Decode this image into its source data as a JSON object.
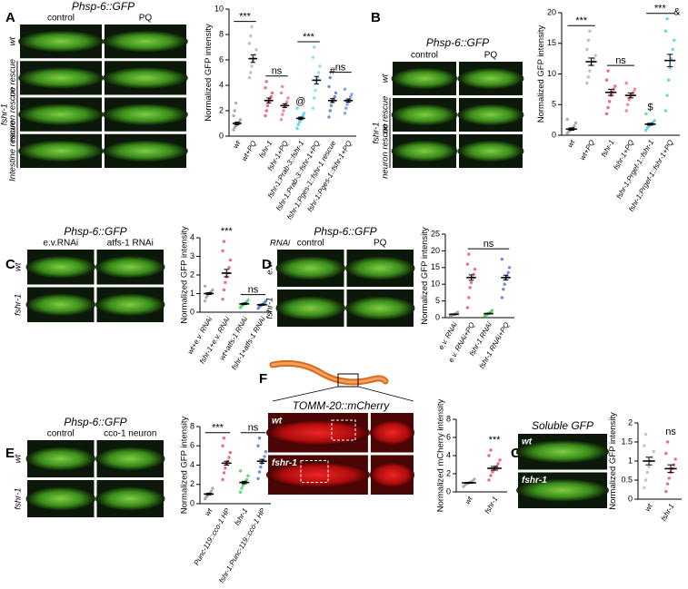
{
  "panels": [
    {
      "letter": "A",
      "title": "Phsp-6::GFP",
      "columns": [
        "control",
        "PQ"
      ],
      "rows": [
        "wt",
        "no rescue",
        "neuron rescue",
        "Intestine rescue"
      ],
      "group": "fshr-1"
    },
    {
      "letter": "B",
      "title": "Phsp-6::GFP",
      "columns": [
        "control",
        "PQ"
      ],
      "rows": [
        "wt",
        "no rescue",
        "neuron rescue"
      ],
      "group": "fshr-1"
    },
    {
      "letter": "C",
      "title": "Phsp-6::GFP",
      "columns": [
        "e.v.RNAi",
        "atfs-1 RNAi"
      ],
      "rows": [
        "wt",
        "fshr-1"
      ]
    },
    {
      "letter": "D",
      "title": "Phsp-6::GFP",
      "corner": "RNAi",
      "columns": [
        "control",
        "PQ"
      ],
      "rows": [
        "e.v.",
        "fshr-1"
      ]
    },
    {
      "letter": "E",
      "title": "Phsp-6::GFP",
      "columns": [
        "control",
        "cco-1 neuron"
      ],
      "rows": [
        "wt",
        "fshr-1"
      ]
    },
    {
      "letter": "F",
      "title": "TOMM-20::mCherry",
      "rows": [
        "wt",
        "fshr-1"
      ]
    },
    {
      "letter": "G",
      "title": "Soluble GFP",
      "rows": [
        "wt",
        "fshr-1"
      ]
    }
  ],
  "chart_data": [
    {
      "type": "dot",
      "ylabel": "Normalized GFP intensity",
      "categories": [
        "wt",
        "wt+PQ",
        "fshr-1",
        "fshr-1+PQ",
        "fshr-1;Prab-3::fshr-1",
        "fshr-1;Prab-3::fshr-1+PQ",
        "fshr-1;Pges-1::fshr-1 rescue",
        "fshr-1;Pges-1::fshr-1+PQ"
      ],
      "colors": [
        "#9a9a9a",
        "#b0b0b0",
        "#e8485a",
        "#ee6a78",
        "#3fd0ee",
        "#6adcf2",
        "#4f6fd0",
        "#6f88dc"
      ],
      "means": [
        1.0,
        6.1,
        2.8,
        2.4,
        1.4,
        4.4,
        2.8,
        2.8
      ],
      "errors": [
        0.1,
        0.3,
        0.2,
        0.15,
        0.1,
        0.3,
        0.15,
        0.12
      ],
      "points": [
        [
          0.5,
          0.7,
          0.8,
          0.9,
          1.0,
          1.1,
          1.3,
          1.6,
          2.0,
          2.6
        ],
        [
          4.6,
          5.0,
          5.5,
          5.9,
          6.1,
          6.4,
          6.8,
          7.3,
          7.9,
          8.6
        ],
        [
          1.6,
          2.0,
          2.4,
          2.7,
          2.9,
          3.1,
          3.4,
          3.8,
          4.3
        ],
        [
          1.3,
          1.7,
          2.0,
          2.3,
          2.5,
          2.7,
          3.0,
          3.4,
          3.9
        ],
        [
          0.6,
          0.9,
          1.1,
          1.3,
          1.4,
          1.6,
          1.8,
          2.2
        ],
        [
          2.2,
          3.0,
          3.6,
          4.2,
          4.6,
          5.0,
          5.5,
          6.2,
          7.0
        ],
        [
          1.5,
          2.0,
          2.4,
          2.7,
          2.9,
          3.1,
          3.4,
          3.9,
          4.6
        ],
        [
          1.8,
          2.2,
          2.5,
          2.7,
          2.9,
          3.1,
          3.3,
          3.7
        ]
      ],
      "ylim": [
        0,
        10
      ],
      "yticks": [
        0,
        2,
        4,
        6,
        8,
        10
      ],
      "brackets": [
        {
          "label": "***",
          "from": 0,
          "to": 1
        },
        {
          "label": "ns",
          "from": 2,
          "to": 3
        },
        {
          "label": "***",
          "from": 4,
          "to": 5
        },
        {
          "label": "ns",
          "from": 6,
          "to": 7
        }
      ],
      "marks": [
        {
          "label": "@",
          "category": 4
        },
        {
          "label": "#",
          "category": 6
        }
      ]
    },
    {
      "type": "dot",
      "ylabel": "Normalized GFP intensity",
      "categories": [
        "wt",
        "wt+PQ",
        "fshr-1",
        "fshr-1+PQ",
        "fshr-1;Prgef-1::fshr-1",
        "fshr-1;Prgef-1::fshr-1+PQ"
      ],
      "colors": [
        "#9a9a9a",
        "#b0b0b0",
        "#e8485a",
        "#ee6a78",
        "#3fd0ee",
        "#3fd0ee"
      ],
      "means": [
        1.0,
        12.0,
        7.0,
        6.5,
        1.8,
        12.2
      ],
      "errors": [
        0.2,
        0.6,
        0.5,
        0.4,
        0.15,
        1.0
      ],
      "points": [
        [
          0.3,
          0.6,
          0.8,
          1.0,
          1.2,
          1.5,
          2.0,
          2.6
        ],
        [
          8.5,
          9.5,
          10.5,
          11.5,
          12,
          12.5,
          13,
          14,
          15.5,
          17
        ],
        [
          3.5,
          4.5,
          5.5,
          6.5,
          7,
          7.5,
          8,
          9,
          10.5
        ],
        [
          4.0,
          5.0,
          5.8,
          6.3,
          6.6,
          7,
          7.5,
          8.5
        ],
        [
          0.8,
          1.2,
          1.5,
          1.7,
          1.9,
          2.1,
          2.4,
          3.5
        ],
        [
          4.0,
          6.5,
          9,
          11,
          12.5,
          14,
          15.5,
          17,
          19
        ]
      ],
      "ylim": [
        0,
        20
      ],
      "yticks": [
        0,
        5,
        10,
        15,
        20
      ],
      "brackets": [
        {
          "label": "***",
          "from": 0,
          "to": 1
        },
        {
          "label": "ns",
          "from": 2,
          "to": 3
        },
        {
          "label": "***",
          "from": 4,
          "to": 5
        }
      ],
      "marks": [
        {
          "label": "$",
          "category": 4
        },
        {
          "label": "&",
          "category": 5
        }
      ]
    },
    {
      "type": "dot",
      "ylabel": "Normalized GFP intensity",
      "categories": [
        "wt+e.v. RNAi",
        "fshr-1+e.v. RNAi",
        "wt+atfs-1 RNAi",
        "fshr-1+atfs-1 RNAi"
      ],
      "colors": [
        "#9a9a9a",
        "#e8485a",
        "#3ccf5a",
        "#4f6fd0"
      ],
      "means": [
        1.0,
        2.1,
        0.45,
        0.4
      ],
      "errors": [
        0.05,
        0.2,
        0.04,
        0.03
      ],
      "points": [
        [
          0.6,
          0.8,
          0.9,
          1.0,
          1.05,
          1.1,
          1.2,
          1.4
        ],
        [
          0.7,
          1.2,
          1.6,
          1.9,
          2.1,
          2.4,
          2.8,
          3.3,
          3.8
        ],
        [
          0.25,
          0.35,
          0.4,
          0.45,
          0.5,
          0.55,
          0.65
        ],
        [
          0.2,
          0.3,
          0.35,
          0.4,
          0.45,
          0.5,
          0.6
        ]
      ],
      "ylim": [
        0,
        4
      ],
      "yticks": [
        0,
        1,
        2,
        3,
        4
      ],
      "brackets": [
        {
          "label": "***",
          "from": 1,
          "to": 1
        },
        {
          "label": "ns",
          "from": 2,
          "to": 3
        }
      ],
      "marks": []
    },
    {
      "type": "dot",
      "ylabel": "Normalized GFP intensity",
      "categories": [
        "e.v. RNAi",
        "e.v. RNAi+PQ",
        "fshr-1 RNAi",
        "fshr-1 RNAi+PQ"
      ],
      "colors": [
        "#9a9a9a",
        "#e8485a",
        "#3ccf5a",
        "#4f6fd0"
      ],
      "means": [
        1.0,
        12.0,
        1.2,
        12.0
      ],
      "errors": [
        0.1,
        0.8,
        0.1,
        0.7
      ],
      "points": [
        [
          0.5,
          0.7,
          0.9,
          1.0,
          1.1,
          1.3,
          1.6
        ],
        [
          3,
          6,
          9,
          10.5,
          12,
          13,
          14.5,
          16,
          19
        ],
        [
          0.5,
          0.8,
          1.0,
          1.2,
          1.4,
          1.7,
          2.2
        ],
        [
          6,
          8.5,
          10,
          11.5,
          12.5,
          13.5,
          15,
          17.5
        ]
      ],
      "ylim": [
        0,
        25
      ],
      "yticks": [
        0,
        5,
        10,
        15,
        20,
        25
      ],
      "brackets": [
        {
          "label": "ns",
          "from": 1,
          "to": 3
        }
      ],
      "marks": []
    },
    {
      "type": "dot",
      "ylabel": "Normalized GFP intensity",
      "categories": [
        "wt",
        "Punc-119::cco-1 HP",
        "fshr-1",
        "fshr-1;Punc-119::cco-1 HP"
      ],
      "colors": [
        "#9a9a9a",
        "#e8485a",
        "#3ccf5a",
        "#4f6fd0"
      ],
      "means": [
        1.0,
        4.2,
        2.2,
        4.4
      ],
      "errors": [
        0.08,
        0.2,
        0.12,
        0.2
      ],
      "points": [
        [
          0.5,
          0.7,
          0.85,
          1.0,
          1.1,
          1.3,
          1.6
        ],
        [
          2.5,
          3.2,
          3.7,
          4.1,
          4.4,
          4.8,
          5.3,
          6.0,
          6.8
        ],
        [
          1.2,
          1.6,
          1.9,
          2.1,
          2.3,
          2.5,
          2.9,
          3.4
        ],
        [
          2.6,
          3.3,
          3.8,
          4.2,
          4.5,
          4.9,
          5.4,
          6.0,
          6.8
        ]
      ],
      "ylim": [
        0,
        8
      ],
      "yticks": [
        0,
        2,
        4,
        6,
        8
      ],
      "brackets": [
        {
          "label": "***",
          "from": 0,
          "to": 1
        },
        {
          "label": "ns",
          "from": 2,
          "to": 3
        }
      ],
      "marks": []
    },
    {
      "type": "dot",
      "ylabel": "Normalized mCherry intensity",
      "categories": [
        "wt",
        "fshr-1"
      ],
      "colors": [
        "#9a9a9a",
        "#e8485a"
      ],
      "means": [
        1.0,
        2.6
      ],
      "errors": [
        0.05,
        0.2
      ],
      "points": [
        [
          0.6,
          0.8,
          0.9,
          1.0,
          1.1,
          1.2,
          1.4
        ],
        [
          1.3,
          1.8,
          2.2,
          2.5,
          2.8,
          3.1,
          3.5,
          4.0,
          4.6
        ]
      ],
      "ylim": [
        0,
        8
      ],
      "yticks": [
        0,
        2,
        4,
        6,
        8
      ],
      "brackets": [
        {
          "label": "***",
          "from": 1,
          "to": 1
        }
      ],
      "marks": []
    },
    {
      "type": "dot",
      "ylabel": "Normalized GFP intensity",
      "categories": [
        "wt",
        "fshr-1"
      ],
      "colors": [
        "#b5b5b5",
        "#e8485a"
      ],
      "means": [
        1.0,
        0.8
      ],
      "errors": [
        0.1,
        0.1
      ],
      "points": [
        [
          0.3,
          0.5,
          0.7,
          0.85,
          1.0,
          1.1,
          1.25,
          1.4,
          1.7
        ],
        [
          0.2,
          0.4,
          0.55,
          0.7,
          0.8,
          0.9,
          1.05,
          1.2,
          1.5
        ]
      ],
      "ylim": [
        0,
        2
      ],
      "yticks": [
        0,
        0.5,
        1,
        1.5,
        2
      ],
      "brackets": [
        {
          "label": "ns",
          "from": 1,
          "to": 1
        }
      ],
      "marks": []
    }
  ]
}
